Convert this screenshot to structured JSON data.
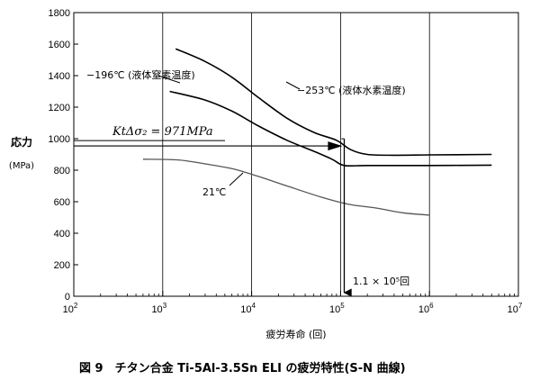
{
  "chart_data": {
    "type": "line",
    "title": "",
    "xlabel": "疲労寿命 (回)",
    "ylabel": "応力",
    "yunit": "(MPa)",
    "xscale": "log",
    "xlim": [
      100,
      10000000
    ],
    "ylim": [
      0,
      1800
    ],
    "xticks": [
      {
        "value": 100,
        "base": "10",
        "exp": "2"
      },
      {
        "value": 1000,
        "base": "10",
        "exp": "3"
      },
      {
        "value": 10000,
        "base": "10",
        "exp": "4"
      },
      {
        "value": 100000,
        "base": "10",
        "exp": "5"
      },
      {
        "value": 1000000,
        "base": "10",
        "exp": "6"
      },
      {
        "value": 10000000,
        "base": "10",
        "exp": "7"
      }
    ],
    "yticks": [
      0,
      200,
      400,
      600,
      800,
      1000,
      1200,
      1400,
      1600,
      1800
    ],
    "grid": "vertical-at-decades",
    "series": [
      {
        "name": "−253℃ (液体水素温度)",
        "color": "#000000",
        "points": [
          [
            1400,
            1570
          ],
          [
            3000,
            1490
          ],
          [
            6000,
            1390
          ],
          [
            12000,
            1260
          ],
          [
            25000,
            1130
          ],
          [
            50000,
            1040
          ],
          [
            90000,
            990
          ],
          [
            130000,
            930
          ],
          [
            200000,
            900
          ],
          [
            400000,
            895
          ],
          [
            1000000,
            897
          ],
          [
            5000000,
            900
          ]
        ]
      },
      {
        "name": "−196℃ (液体窒素温度)",
        "color": "#000000",
        "points": [
          [
            1200,
            1300
          ],
          [
            3000,
            1245
          ],
          [
            6000,
            1175
          ],
          [
            12000,
            1080
          ],
          [
            25000,
            990
          ],
          [
            50000,
            920
          ],
          [
            80000,
            870
          ],
          [
            110000,
            830
          ],
          [
            200000,
            830
          ],
          [
            1000000,
            830
          ],
          [
            5000000,
            832
          ]
        ]
      },
      {
        "name": "21℃",
        "color": "#555555",
        "points": [
          [
            600,
            870
          ],
          [
            1500,
            865
          ],
          [
            3000,
            840
          ],
          [
            6000,
            810
          ],
          [
            12000,
            760
          ],
          [
            25000,
            700
          ],
          [
            60000,
            630
          ],
          [
            120000,
            585
          ],
          [
            250000,
            560
          ],
          [
            500000,
            530
          ],
          [
            1000000,
            515
          ]
        ]
      }
    ],
    "annotations": {
      "kt_label": "KtΔσ₂ = 971MPa",
      "kt_value": 971,
      "kt_x": 100000,
      "cycles_label": "1.1 × 10⁵回",
      "cycles_value": 110000
    },
    "caption": "図 9　チタン合金 Ti-5Al-3.5Sn ELI の疲労特性(S-N 曲線)"
  }
}
